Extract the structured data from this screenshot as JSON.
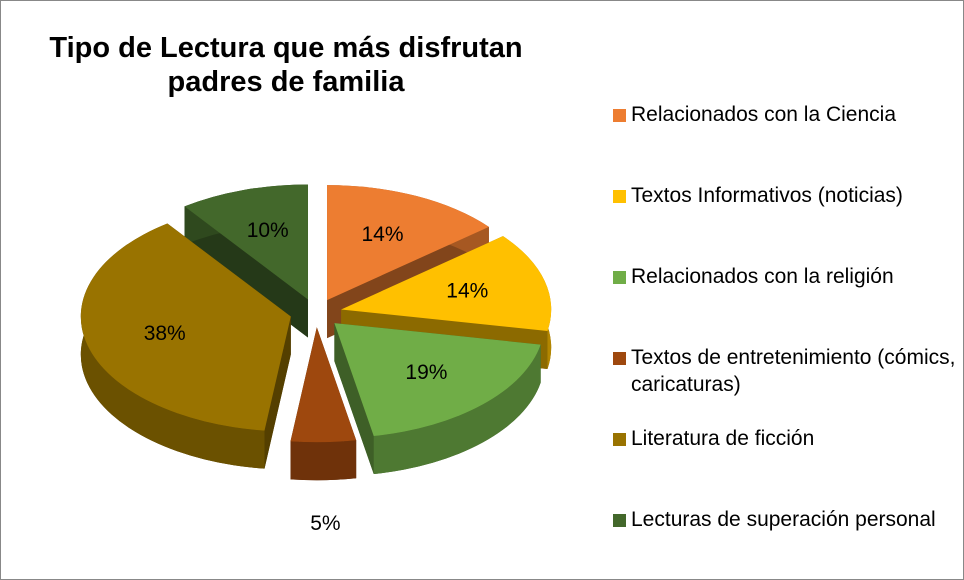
{
  "chart_data": {
    "type": "pie3d",
    "title": "Tipo de Lectura que más disfrutan padres de familia",
    "categories": [
      "Relacionados con la Ciencia",
      "Textos Informativos (noticias)",
      "Relacionados con la religión",
      "Textos de entretenimiento (cómics, caricaturas)",
      "Literatura de ficción",
      "Lecturas de superación personal"
    ],
    "values": [
      14,
      14,
      19,
      5,
      38,
      10
    ],
    "value_labels": [
      "14%",
      "14%",
      "19%",
      "5%",
      "38%",
      "10%"
    ],
    "colors": [
      "#ED7D31",
      "#FFC000",
      "#70AD47",
      "#9E480E",
      "#997300",
      "#43682B"
    ],
    "legend": "right"
  }
}
